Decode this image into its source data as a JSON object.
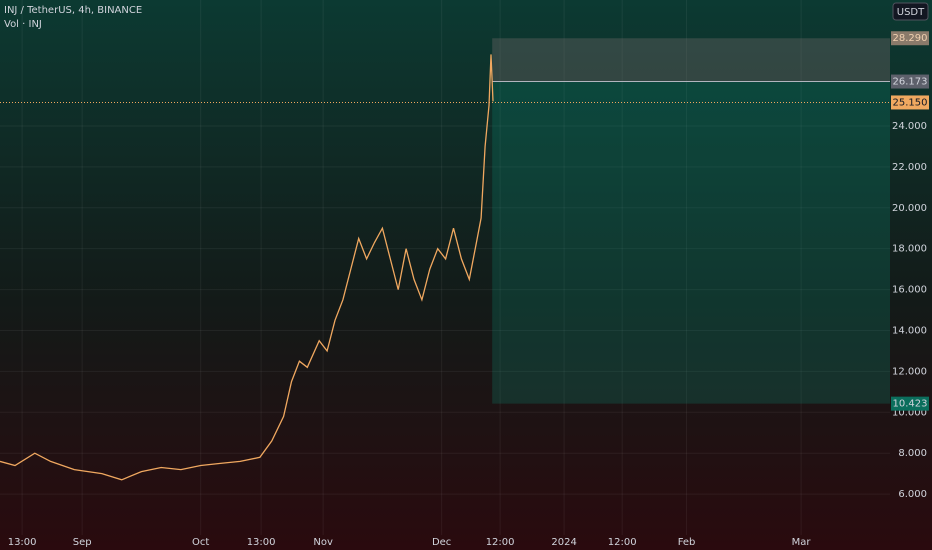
{
  "chart_data": {
    "type": "line",
    "title": "INJ / TetherUS, 4h, BINANCE",
    "volume_label": "Vol · INJ",
    "currency": "USDT",
    "color": "#f0a860",
    "x": [
      -20.8,
      -17,
      -12,
      -8,
      -2,
      5,
      10,
      15,
      20,
      25,
      30,
      35,
      40,
      45,
      48,
      51,
      53,
      55,
      57,
      60,
      62,
      64,
      66,
      68,
      70,
      72,
      74,
      76,
      78,
      80,
      82,
      84,
      86,
      88,
      90,
      92,
      94,
      96,
      98,
      100,
      101,
      102,
      103,
      103.5,
      104
    ],
    "values": [
      7.6,
      7.4,
      8.0,
      7.6,
      7.2,
      7.0,
      6.7,
      7.1,
      7.3,
      7.2,
      7.4,
      7.5,
      7.6,
      7.8,
      8.6,
      9.8,
      11.5,
      12.5,
      12.2,
      13.5,
      13.0,
      14.5,
      15.5,
      17.0,
      18.5,
      17.5,
      18.3,
      19.0,
      17.5,
      16.0,
      18.0,
      16.5,
      15.5,
      17.0,
      18.0,
      17.5,
      19.0,
      17.5,
      16.5,
      18.5,
      19.5,
      23.0,
      25.0,
      27.5,
      25.2
    ],
    "xlim": [
      -20.8,
      204.5
    ],
    "xticks": [
      {
        "value": -15.2,
        "label": "13:00"
      },
      {
        "value": 0,
        "label": "Sep"
      },
      {
        "value": 30,
        "label": "Oct"
      },
      {
        "value": 45.3,
        "label": "13:00"
      },
      {
        "value": 61,
        "label": "Nov"
      },
      {
        "value": 91,
        "label": "Dec"
      },
      {
        "value": 105.8,
        "label": "12:00"
      },
      {
        "value": 122,
        "label": "2024"
      },
      {
        "value": 136.7,
        "label": "12:00"
      },
      {
        "value": 153,
        "label": "Feb"
      },
      {
        "value": 182,
        "label": "Mar"
      }
    ],
    "ylim": [
      4,
      30.16
    ],
    "yticks": [
      {
        "value": 6,
        "label": "6.000"
      },
      {
        "value": 8,
        "label": "8.000"
      },
      {
        "value": 10,
        "label": "10.000"
      },
      {
        "value": 12,
        "label": "12.000"
      },
      {
        "value": 14,
        "label": "14.000"
      },
      {
        "value": 16,
        "label": "16.000"
      },
      {
        "value": 18,
        "label": "18.000"
      },
      {
        "value": 20,
        "label": "20.000"
      },
      {
        "value": 22,
        "label": "22.000"
      },
      {
        "value": 24,
        "label": "24.000"
      }
    ],
    "position": {
      "start": 103.8,
      "stop": {
        "value": 28.29,
        "label": "28.290"
      },
      "entry": {
        "value": 26.173,
        "label": "26.173"
      },
      "target": {
        "value": 10.423,
        "label": "10.423"
      }
    },
    "last_price": {
      "value": 25.15,
      "label": "25.150"
    }
  }
}
